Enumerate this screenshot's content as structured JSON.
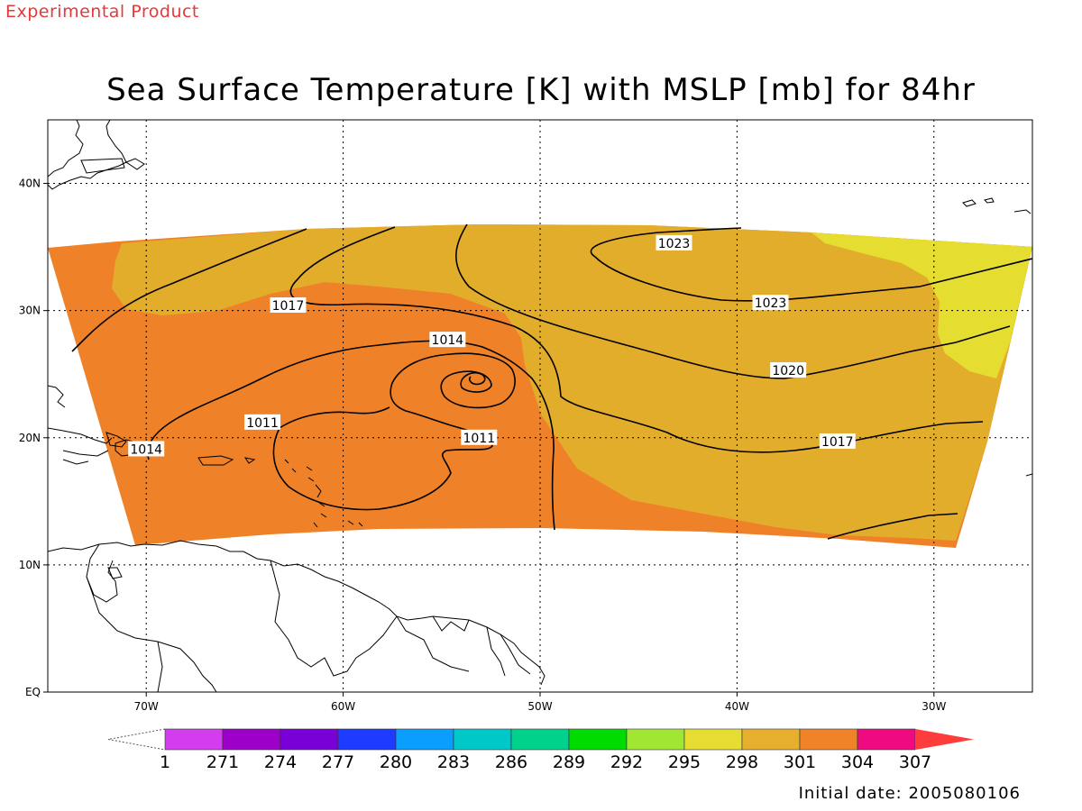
{
  "header": {
    "product_label": "Experimental Product",
    "title": "Sea Surface Temperature [K] with MSLP [mb] for 84hr"
  },
  "footer": {
    "initial_date": "Initial date: 2005080106"
  },
  "map": {
    "projection": "lat-lon",
    "lon_range": [
      -75,
      -25
    ],
    "lat_range": [
      0,
      45
    ],
    "lat_ticks": [
      {
        "lat": 40,
        "label": "40N"
      },
      {
        "lat": 30,
        "label": "30N"
      },
      {
        "lat": 20,
        "label": "20N"
      },
      {
        "lat": 10,
        "label": "10N"
      },
      {
        "lat": 0,
        "label": "EQ"
      }
    ],
    "lon_ticks": [
      {
        "lon": -70,
        "label": "70W"
      },
      {
        "lon": -60,
        "label": "60W"
      },
      {
        "lon": -50,
        "label": "50W"
      },
      {
        "lon": -40,
        "label": "40W"
      },
      {
        "lon": -30,
        "label": "30W"
      }
    ],
    "gridlines": "dotted",
    "field_colors": {
      "sst_298_301": "#e3ad2c",
      "sst_301_304": "#ef8228",
      "sst_295_298": "#e5dd2f",
      "land_outline": "#000000"
    },
    "mslp_contour_labels": [
      {
        "value": "1023",
        "lon": -43.2,
        "lat": 35.3
      },
      {
        "value": "1023",
        "lon": -38.3,
        "lat": 30.6
      },
      {
        "value": "1020",
        "lon": -37.4,
        "lat": 25.3
      },
      {
        "value": "1017",
        "lon": -34.9,
        "lat": 19.7
      },
      {
        "value": "1017",
        "lon": -62.8,
        "lat": 30.4
      },
      {
        "value": "1014",
        "lon": -54.7,
        "lat": 27.7
      },
      {
        "value": "1011",
        "lon": -64.1,
        "lat": 21.2
      },
      {
        "value": "1011",
        "lon": -53.1,
        "lat": 20.0
      },
      {
        "value": "1014",
        "lon": -70.0,
        "lat": 19.1
      }
    ]
  },
  "colorbar": {
    "colors": [
      "#d43cf0",
      "#9d00c8",
      "#7a00d8",
      "#1d3cff",
      "#0a9eff",
      "#00c8c8",
      "#00d28c",
      "#00dc00",
      "#a0e632",
      "#e6dc32",
      "#e6af2d",
      "#f08228",
      "#f00a82",
      "#ff3c3c"
    ],
    "labels": [
      "1",
      "271",
      "274",
      "277",
      "280",
      "283",
      "286",
      "289",
      "292",
      "295",
      "298",
      "301",
      "304",
      "307"
    ]
  }
}
